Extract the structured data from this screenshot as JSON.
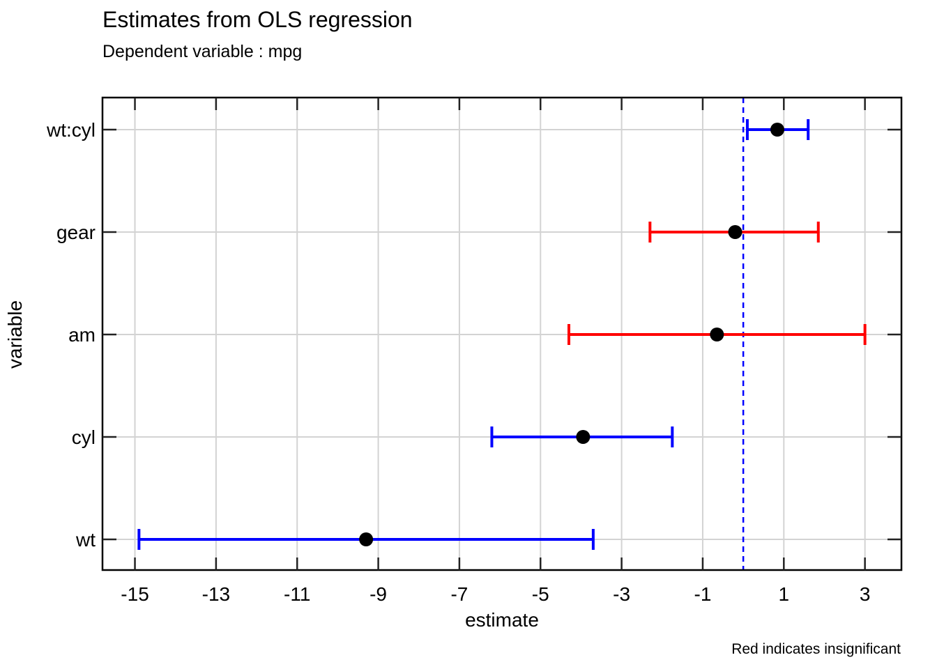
{
  "chart_data": {
    "type": "coefficient-plot",
    "title": "Estimates from OLS regression",
    "subtitle": "Dependent variable : mpg",
    "xlabel": "estimate",
    "ylabel": "variable",
    "caption": "Red indicates insignificant",
    "xlim": [
      -15.8,
      3.9
    ],
    "x_ticks": [
      -15,
      -13,
      -11,
      -9,
      -7,
      -5,
      -3,
      -1,
      1,
      3
    ],
    "reference_line": 0,
    "grid": true,
    "colors": {
      "significant": "#0000ff",
      "insignificant": "#ff0000",
      "point": "#000000",
      "grid": "#d3d3d3",
      "reference": "#0000ff"
    },
    "variables": [
      {
        "name": "wt:cyl",
        "estimate": 0.84,
        "low": 0.1,
        "high": 1.6,
        "significant": true
      },
      {
        "name": "gear",
        "estimate": -0.2,
        "low": -2.3,
        "high": 1.85,
        "significant": false
      },
      {
        "name": "am",
        "estimate": -0.65,
        "low": -4.3,
        "high": 3.0,
        "significant": false
      },
      {
        "name": "cyl",
        "estimate": -3.95,
        "low": -6.2,
        "high": -1.75,
        "significant": true
      },
      {
        "name": "wt",
        "estimate": -9.3,
        "low": -14.9,
        "high": -3.7,
        "significant": true
      }
    ]
  }
}
